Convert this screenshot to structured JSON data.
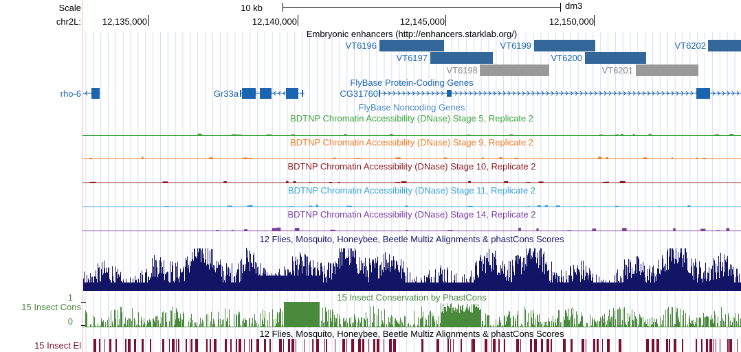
{
  "ruler": {
    "scale_label": "Scale",
    "chrom_label": "chr2L:",
    "scale_bar_text": "10 kb",
    "assembly": "dm3",
    "ticks": [
      "12,135,000",
      "12,140,000",
      "12,145,000",
      "12,150,000"
    ]
  },
  "tracks": {
    "enhancers": {
      "title": "Embryonic enhancers (http://enhancers.starklab.org/)",
      "color": "#336699",
      "muted_color": "#999999",
      "items": [
        {
          "name": "VT6196",
          "muted": false
        },
        {
          "name": "VT6197",
          "muted": false
        },
        {
          "name": "VT6198",
          "muted": true
        },
        {
          "name": "VT6199",
          "muted": false
        },
        {
          "name": "VT6200",
          "muted": false
        },
        {
          "name": "VT6201",
          "muted": true
        },
        {
          "name": "VT6202",
          "muted": false
        }
      ]
    },
    "protein_coding": {
      "title": "FlyBase Protein-Coding Genes",
      "color": "#1a64b0",
      "genes": [
        {
          "name": "rho-6",
          "strand": "-"
        },
        {
          "name": "Gr33a",
          "strand": "-"
        },
        {
          "name": "CG31760",
          "strand": "+"
        }
      ]
    },
    "noncoding": {
      "title": "FlyBase Noncoding Genes",
      "color": "#4a8bc4"
    },
    "dnase": [
      {
        "title": "BDTNP Chromatin Accessibility (DNase) Stage 5, Replicate 2",
        "color": "#3aa63a"
      },
      {
        "title": "BDTNP Chromatin Accessibility (DNase) Stage 9, Replicate 2",
        "color": "#f07d22"
      },
      {
        "title": "BDTNP Chromatin Accessibility (DNase) Stage 10, Replicate 2",
        "color": "#8b1a1a"
      },
      {
        "title": "BDTNP Chromatin Accessibility (DNase) Stage 11, Replicate 2",
        "color": "#39a5d6"
      },
      {
        "title": "BDTNP Chromatin Accessibility (DNase) Stage 14, Replicate 2",
        "color": "#7a3fa0"
      }
    ],
    "multiz": {
      "title": "12 Flies, Mosquito, Honeybee, Beetle Multiz Alignments & phastCons Scores",
      "color": "#141466"
    },
    "insect_cons": {
      "title": "15 Insect Conservation by PhastCons",
      "side_label": "15 Insect Cons",
      "y_max": "1",
      "y_min": "0",
      "color": "#4a8a3c"
    },
    "insect_el": {
      "title": "12 Flies, Mosquito, Honeybee, Beetle Multiz Alignments & phastCons Scores",
      "side_label": "15 Insect El",
      "color": "#7a1030"
    }
  }
}
